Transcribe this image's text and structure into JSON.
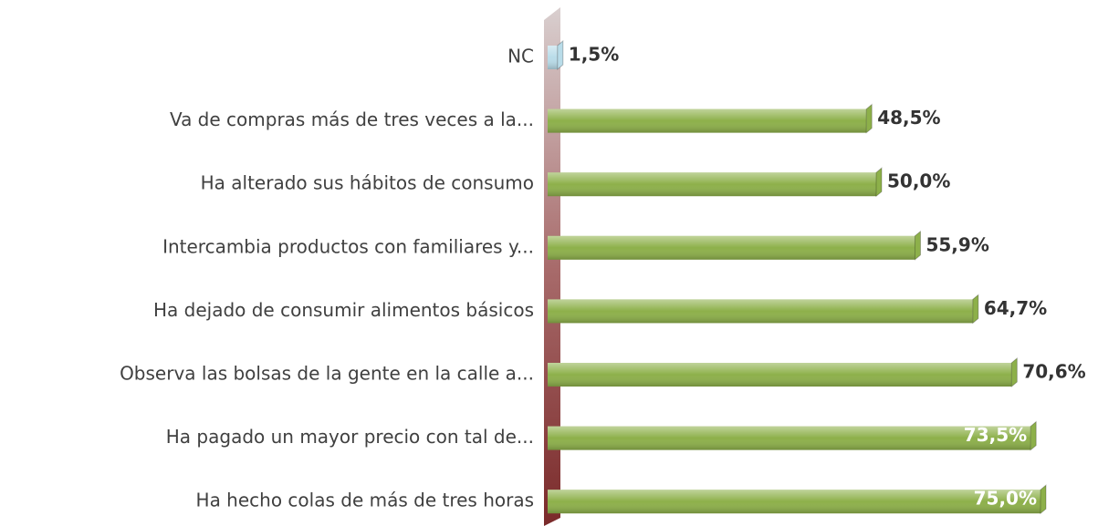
{
  "chart_data": {
    "type": "bar",
    "orientation": "horizontal",
    "categories": [
      "NC",
      "Va de compras más de tres veces a la...",
      "Ha alterado sus hábitos de consumo",
      "Intercambia productos con familiares y...",
      "Ha dejado de consumir alimentos básicos",
      "Observa las bolsas de la gente en la calle a...",
      "Ha pagado un mayor precio  con tal de...",
      "Ha hecho colas de más de tres horas"
    ],
    "values": [
      1.5,
      48.5,
      50.0,
      55.9,
      64.7,
      70.6,
      73.5,
      75.0
    ],
    "value_labels": [
      "1,5%",
      "48,5%",
      "50,0%",
      "55,9%",
      "64,7%",
      "70,6%",
      "73,5%",
      "75,0%"
    ],
    "colors": [
      "#b9dce9",
      "#8db04a",
      "#8db04a",
      "#8db04a",
      "#8db04a",
      "#8db04a",
      "#8db04a",
      "#8db04a"
    ]
  }
}
